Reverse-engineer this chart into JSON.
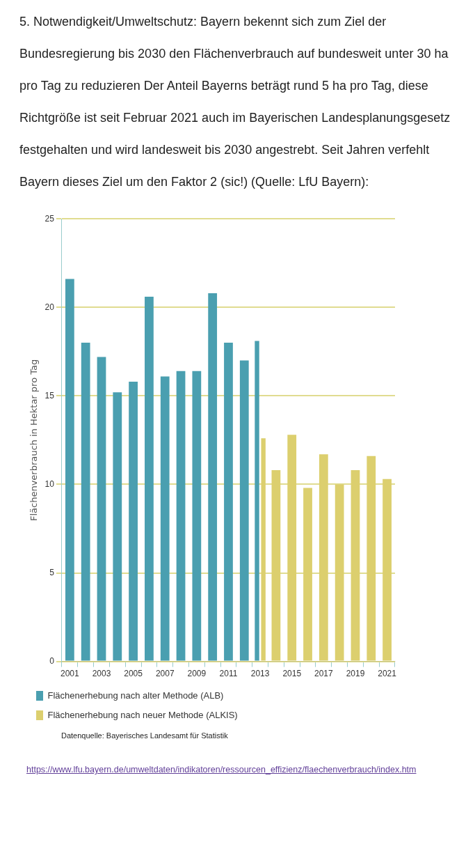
{
  "chart_data": {
    "type": "bar",
    "title": "5. Notwendigkeit/Umweltschutz: Bayern bekennt sich zum Ziel der Bundesregierung bis 2030 den Flächenverbrauch auf bundesweit unter 30 ha pro Tag zu reduzieren Der Anteil Bayerns beträgt rund 5 ha pro Tag, diese Richtgröße ist seit Februar 2021 auch im Bayerischen Landesplanungsgesetz festgehalten und wird landesweit bis 2030 angestrebt. Seit Jahren verfehlt Bayern dieses Ziel um den Faktor 2 (sic!) (Quelle: LfU Bayern):",
    "ylabel": "Flächenverbrauch in Hektar pro Tag",
    "categories": [
      "2001",
      null,
      "2003",
      null,
      "2005",
      null,
      "2007",
      null,
      "2009",
      null,
      "2011",
      null,
      "2013",
      null,
      "2015",
      null,
      "2017",
      null,
      "2019",
      null,
      "2021"
    ],
    "series": [
      {
        "name": "Flächenerhebung nach alter Methode (ALB)",
        "color": "#4a9fb0",
        "values": [
          21.6,
          18.0,
          17.2,
          15.2,
          15.8,
          20.6,
          16.1,
          16.4,
          16.4,
          20.8,
          18.0,
          17.0,
          18.1,
          null,
          null,
          null,
          null,
          null,
          null,
          null,
          null
        ]
      },
      {
        "name": "Flächenerhebung nach neuer Methode (ALKIS)",
        "color": "#dccf6e",
        "values": [
          null,
          null,
          null,
          null,
          null,
          null,
          null,
          null,
          null,
          null,
          null,
          null,
          12.6,
          10.8,
          12.8,
          9.8,
          11.7,
          10.0,
          10.8,
          11.6,
          10.3
        ]
      }
    ],
    "ylim": [
      0,
      25
    ],
    "yticks": [
      0,
      5,
      10,
      15,
      20,
      25
    ],
    "grid": "y",
    "legend": "bottom",
    "annotations": [
      "Datenquelle: Bayerisches Landesamt für Statistik",
      "https://www.lfu.bayern.de/umweltdaten/indikatoren/ressourcen_effizienz/flaechenverbrauch/index.htm"
    ]
  }
}
